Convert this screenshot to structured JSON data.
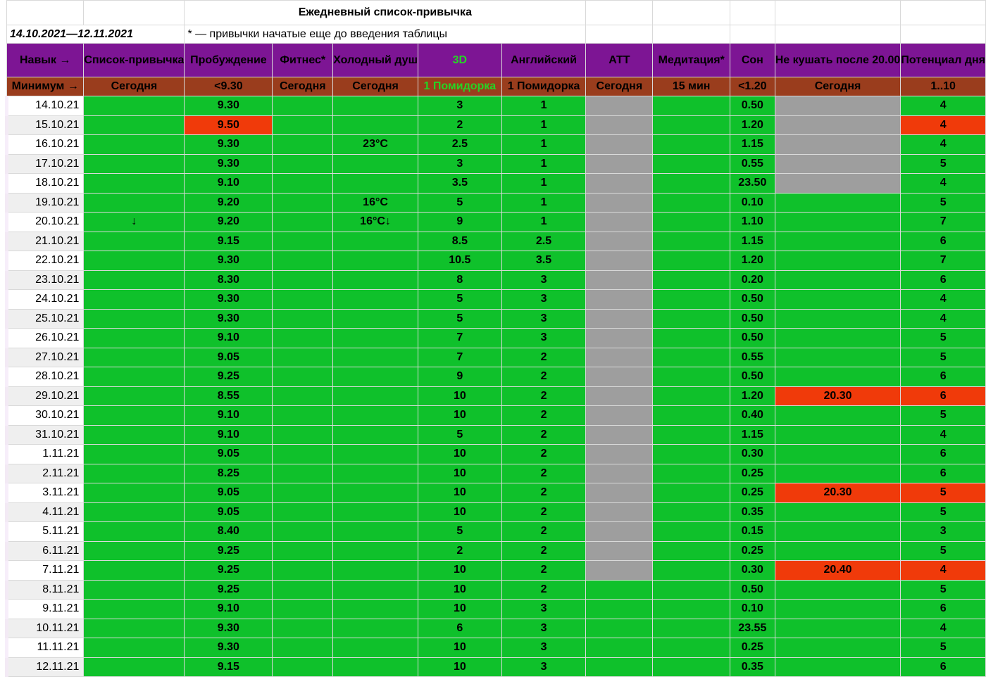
{
  "title": "Ежедневный список-привычка",
  "period": "14.10.2021—12.11.2021",
  "note": "* — привычки начатые еще до введения таблицы",
  "colors": {
    "header_bg": "#7d1594",
    "minimum_bg": "#9a3d1d",
    "done": "#0fc12b",
    "missed": "#f03a0a",
    "not_started": "#9e9e9e",
    "title": "#6a1b6e",
    "highlight_3d": "#25d525"
  },
  "headers": [
    "Навык →",
    "Список-привычка",
    "Пробуждение",
    "Фитнес*",
    "Холодный душ",
    "3D",
    "Английский",
    "АТТ",
    "Медитация*",
    "Сон",
    "Не кушать после 20.00",
    "Потенциал дня"
  ],
  "minimums": [
    "Минимум →",
    "Сегодня",
    "<9.30",
    "Сегодня",
    "Сегодня",
    "1 Помидорка",
    "1 Помидорка",
    "Сегодня",
    "15 мин",
    "<1.20",
    "Сегодня",
    "1..10"
  ],
  "rows": [
    {
      "date": "14.10.21",
      "cells": [
        [
          "",
          "g"
        ],
        [
          "9.30",
          "g"
        ],
        [
          "",
          "g"
        ],
        [
          "",
          "g"
        ],
        [
          "3",
          "g"
        ],
        [
          "1",
          "g"
        ],
        [
          "",
          "gr"
        ],
        [
          "",
          "g"
        ],
        [
          "0.50",
          "g"
        ],
        [
          "",
          "gr"
        ],
        [
          "4",
          "g"
        ]
      ]
    },
    {
      "date": "15.10.21",
      "cells": [
        [
          "",
          "g"
        ],
        [
          "9.50",
          "r"
        ],
        [
          "",
          "g"
        ],
        [
          "",
          "g"
        ],
        [
          "2",
          "g"
        ],
        [
          "1",
          "g"
        ],
        [
          "",
          "gr"
        ],
        [
          "",
          "g"
        ],
        [
          "1.20",
          "g"
        ],
        [
          "",
          "gr"
        ],
        [
          "4",
          "r"
        ]
      ]
    },
    {
      "date": "16.10.21",
      "cells": [
        [
          "",
          "g"
        ],
        [
          "9.30",
          "g"
        ],
        [
          "",
          "g"
        ],
        [
          "23°C",
          "g"
        ],
        [
          "2.5",
          "g"
        ],
        [
          "1",
          "g"
        ],
        [
          "",
          "gr"
        ],
        [
          "",
          "g"
        ],
        [
          "1.15",
          "g"
        ],
        [
          "",
          "gr"
        ],
        [
          "4",
          "g"
        ]
      ]
    },
    {
      "date": "17.10.21",
      "cells": [
        [
          "",
          "g"
        ],
        [
          "9.30",
          "g"
        ],
        [
          "",
          "g"
        ],
        [
          "",
          "g"
        ],
        [
          "3",
          "g"
        ],
        [
          "1",
          "g"
        ],
        [
          "",
          "gr"
        ],
        [
          "",
          "g"
        ],
        [
          "0.55",
          "g"
        ],
        [
          "",
          "gr"
        ],
        [
          "5",
          "g"
        ]
      ]
    },
    {
      "date": "18.10.21",
      "cells": [
        [
          "",
          "g"
        ],
        [
          "9.10",
          "g"
        ],
        [
          "",
          "g"
        ],
        [
          "",
          "g"
        ],
        [
          "3.5",
          "g"
        ],
        [
          "1",
          "g"
        ],
        [
          "",
          "gr"
        ],
        [
          "",
          "g"
        ],
        [
          "23.50",
          "g"
        ],
        [
          "",
          "gr"
        ],
        [
          "4",
          "g"
        ]
      ]
    },
    {
      "date": "19.10.21",
      "cells": [
        [
          "",
          "g"
        ],
        [
          "9.20",
          "g"
        ],
        [
          "",
          "g"
        ],
        [
          "16°C",
          "g"
        ],
        [
          "5",
          "g"
        ],
        [
          "1",
          "g"
        ],
        [
          "",
          "gr"
        ],
        [
          "",
          "g"
        ],
        [
          "0.10",
          "g"
        ],
        [
          "",
          "g"
        ],
        [
          "5",
          "g"
        ]
      ]
    },
    {
      "date": "20.10.21",
      "cells": [
        [
          "↓",
          "g"
        ],
        [
          "9.20",
          "g"
        ],
        [
          "",
          "g"
        ],
        [
          "16°C↓",
          "g"
        ],
        [
          "9",
          "g"
        ],
        [
          "1",
          "g"
        ],
        [
          "",
          "gr"
        ],
        [
          "",
          "g"
        ],
        [
          "1.10",
          "g"
        ],
        [
          "",
          "g"
        ],
        [
          "7",
          "g"
        ]
      ]
    },
    {
      "date": "21.10.21",
      "cells": [
        [
          "",
          "g"
        ],
        [
          "9.15",
          "g"
        ],
        [
          "",
          "g"
        ],
        [
          "",
          "g"
        ],
        [
          "8.5",
          "g"
        ],
        [
          "2.5",
          "g"
        ],
        [
          "",
          "gr"
        ],
        [
          "",
          "g"
        ],
        [
          "1.15",
          "g"
        ],
        [
          "",
          "g"
        ],
        [
          "6",
          "g"
        ]
      ]
    },
    {
      "date": "22.10.21",
      "cells": [
        [
          "",
          "g"
        ],
        [
          "9.30",
          "g"
        ],
        [
          "",
          "g"
        ],
        [
          "",
          "g"
        ],
        [
          "10.5",
          "g"
        ],
        [
          "3.5",
          "g"
        ],
        [
          "",
          "gr"
        ],
        [
          "",
          "g"
        ],
        [
          "1.20",
          "g"
        ],
        [
          "",
          "g"
        ],
        [
          "7",
          "g"
        ]
      ]
    },
    {
      "date": "23.10.21",
      "cells": [
        [
          "",
          "g"
        ],
        [
          "8.30",
          "g"
        ],
        [
          "",
          "g"
        ],
        [
          "",
          "g"
        ],
        [
          "8",
          "g"
        ],
        [
          "3",
          "g"
        ],
        [
          "",
          "gr"
        ],
        [
          "",
          "g"
        ],
        [
          "0.20",
          "g"
        ],
        [
          "",
          "g"
        ],
        [
          "6",
          "g"
        ]
      ]
    },
    {
      "date": "24.10.21",
      "cells": [
        [
          "",
          "g"
        ],
        [
          "9.30",
          "g"
        ],
        [
          "",
          "g"
        ],
        [
          "",
          "g"
        ],
        [
          "5",
          "g"
        ],
        [
          "3",
          "g"
        ],
        [
          "",
          "gr"
        ],
        [
          "",
          "g"
        ],
        [
          "0.50",
          "g"
        ],
        [
          "",
          "g"
        ],
        [
          "4",
          "g"
        ]
      ]
    },
    {
      "date": "25.10.21",
      "cells": [
        [
          "",
          "g"
        ],
        [
          "9.30",
          "g"
        ],
        [
          "",
          "g"
        ],
        [
          "",
          "g"
        ],
        [
          "5",
          "g"
        ],
        [
          "3",
          "g"
        ],
        [
          "",
          "gr"
        ],
        [
          "",
          "g"
        ],
        [
          "0.50",
          "g"
        ],
        [
          "",
          "g"
        ],
        [
          "4",
          "g"
        ]
      ]
    },
    {
      "date": "26.10.21",
      "cells": [
        [
          "",
          "g"
        ],
        [
          "9.10",
          "g"
        ],
        [
          "",
          "g"
        ],
        [
          "",
          "g"
        ],
        [
          "7",
          "g"
        ],
        [
          "3",
          "g"
        ],
        [
          "",
          "gr"
        ],
        [
          "",
          "g"
        ],
        [
          "0.50",
          "g"
        ],
        [
          "",
          "g"
        ],
        [
          "5",
          "g"
        ]
      ]
    },
    {
      "date": "27.10.21",
      "cells": [
        [
          "",
          "g"
        ],
        [
          "9.05",
          "g"
        ],
        [
          "",
          "g"
        ],
        [
          "",
          "g"
        ],
        [
          "7",
          "g"
        ],
        [
          "2",
          "g"
        ],
        [
          "",
          "gr"
        ],
        [
          "",
          "g"
        ],
        [
          "0.55",
          "g"
        ],
        [
          "",
          "g"
        ],
        [
          "5",
          "g"
        ]
      ]
    },
    {
      "date": "28.10.21",
      "cells": [
        [
          "",
          "g"
        ],
        [
          "9.25",
          "g"
        ],
        [
          "",
          "g"
        ],
        [
          "",
          "g"
        ],
        [
          "9",
          "g"
        ],
        [
          "2",
          "g"
        ],
        [
          "",
          "gr"
        ],
        [
          "",
          "g"
        ],
        [
          "0.50",
          "g"
        ],
        [
          "",
          "g"
        ],
        [
          "6",
          "g"
        ]
      ]
    },
    {
      "date": "29.10.21",
      "cells": [
        [
          "",
          "g"
        ],
        [
          "8.55",
          "g"
        ],
        [
          "",
          "g"
        ],
        [
          "",
          "g"
        ],
        [
          "10",
          "g"
        ],
        [
          "2",
          "g"
        ],
        [
          "",
          "gr"
        ],
        [
          "",
          "g"
        ],
        [
          "1.20",
          "g"
        ],
        [
          "20.30",
          "r"
        ],
        [
          "6",
          "r"
        ]
      ]
    },
    {
      "date": "30.10.21",
      "cells": [
        [
          "",
          "g"
        ],
        [
          "9.10",
          "g"
        ],
        [
          "",
          "g"
        ],
        [
          "",
          "g"
        ],
        [
          "10",
          "g"
        ],
        [
          "2",
          "g"
        ],
        [
          "",
          "gr"
        ],
        [
          "",
          "g"
        ],
        [
          "0.40",
          "g"
        ],
        [
          "",
          "g"
        ],
        [
          "5",
          "g"
        ]
      ]
    },
    {
      "date": "31.10.21",
      "cells": [
        [
          "",
          "g"
        ],
        [
          "9.10",
          "g"
        ],
        [
          "",
          "g"
        ],
        [
          "",
          "g"
        ],
        [
          "5",
          "g"
        ],
        [
          "2",
          "g"
        ],
        [
          "",
          "gr"
        ],
        [
          "",
          "g"
        ],
        [
          "1.15",
          "g"
        ],
        [
          "",
          "g"
        ],
        [
          "4",
          "g"
        ]
      ]
    },
    {
      "date": "1.11.21",
      "cells": [
        [
          "",
          "g"
        ],
        [
          "9.05",
          "g"
        ],
        [
          "",
          "g"
        ],
        [
          "",
          "g"
        ],
        [
          "10",
          "g"
        ],
        [
          "2",
          "g"
        ],
        [
          "",
          "gr"
        ],
        [
          "",
          "g"
        ],
        [
          "0.30",
          "g"
        ],
        [
          "",
          "g"
        ],
        [
          "6",
          "g"
        ]
      ]
    },
    {
      "date": "2.11.21",
      "cells": [
        [
          "",
          "g"
        ],
        [
          "8.25",
          "g"
        ],
        [
          "",
          "g"
        ],
        [
          "",
          "g"
        ],
        [
          "10",
          "g"
        ],
        [
          "2",
          "g"
        ],
        [
          "",
          "gr"
        ],
        [
          "",
          "g"
        ],
        [
          "0.25",
          "g"
        ],
        [
          "",
          "g"
        ],
        [
          "6",
          "g"
        ]
      ]
    },
    {
      "date": "3.11.21",
      "cells": [
        [
          "",
          "g"
        ],
        [
          "9.05",
          "g"
        ],
        [
          "",
          "g"
        ],
        [
          "",
          "g"
        ],
        [
          "10",
          "g"
        ],
        [
          "2",
          "g"
        ],
        [
          "",
          "gr"
        ],
        [
          "",
          "g"
        ],
        [
          "0.25",
          "g"
        ],
        [
          "20.30",
          "r"
        ],
        [
          "5",
          "r"
        ]
      ]
    },
    {
      "date": "4.11.21",
      "cells": [
        [
          "",
          "g"
        ],
        [
          "9.05",
          "g"
        ],
        [
          "",
          "g"
        ],
        [
          "",
          "g"
        ],
        [
          "10",
          "g"
        ],
        [
          "2",
          "g"
        ],
        [
          "",
          "gr"
        ],
        [
          "",
          "g"
        ],
        [
          "0.35",
          "g"
        ],
        [
          "",
          "g"
        ],
        [
          "5",
          "g"
        ]
      ]
    },
    {
      "date": "5.11.21",
      "cells": [
        [
          "",
          "g"
        ],
        [
          "8.40",
          "g"
        ],
        [
          "",
          "g"
        ],
        [
          "",
          "g"
        ],
        [
          "5",
          "g"
        ],
        [
          "2",
          "g"
        ],
        [
          "",
          "gr"
        ],
        [
          "",
          "g"
        ],
        [
          "0.15",
          "g"
        ],
        [
          "",
          "g"
        ],
        [
          "3",
          "g"
        ]
      ]
    },
    {
      "date": "6.11.21",
      "cells": [
        [
          "",
          "g"
        ],
        [
          "9.25",
          "g"
        ],
        [
          "",
          "g"
        ],
        [
          "",
          "g"
        ],
        [
          "2",
          "g"
        ],
        [
          "2",
          "g"
        ],
        [
          "",
          "gr"
        ],
        [
          "",
          "g"
        ],
        [
          "0.25",
          "g"
        ],
        [
          "",
          "g"
        ],
        [
          "5",
          "g"
        ]
      ]
    },
    {
      "date": "7.11.21",
      "cells": [
        [
          "",
          "g"
        ],
        [
          "9.25",
          "g"
        ],
        [
          "",
          "g"
        ],
        [
          "",
          "g"
        ],
        [
          "10",
          "g"
        ],
        [
          "2",
          "g"
        ],
        [
          "",
          "gr"
        ],
        [
          "",
          "g"
        ],
        [
          "0.30",
          "g"
        ],
        [
          "20.40",
          "r"
        ],
        [
          "4",
          "r"
        ]
      ]
    },
    {
      "date": "8.11.21",
      "cells": [
        [
          "",
          "g"
        ],
        [
          "9.25",
          "g"
        ],
        [
          "",
          "g"
        ],
        [
          "",
          "g"
        ],
        [
          "10",
          "g"
        ],
        [
          "2",
          "g"
        ],
        [
          "",
          "g"
        ],
        [
          "",
          "g"
        ],
        [
          "0.50",
          "g"
        ],
        [
          "",
          "g"
        ],
        [
          "5",
          "g"
        ]
      ]
    },
    {
      "date": "9.11.21",
      "cells": [
        [
          "",
          "g"
        ],
        [
          "9.10",
          "g"
        ],
        [
          "",
          "g"
        ],
        [
          "",
          "g"
        ],
        [
          "10",
          "g"
        ],
        [
          "3",
          "g"
        ],
        [
          "",
          "g"
        ],
        [
          "",
          "g"
        ],
        [
          "0.10",
          "g"
        ],
        [
          "",
          "g"
        ],
        [
          "6",
          "g"
        ]
      ]
    },
    {
      "date": "10.11.21",
      "cells": [
        [
          "",
          "g"
        ],
        [
          "9.30",
          "g"
        ],
        [
          "",
          "g"
        ],
        [
          "",
          "g"
        ],
        [
          "6",
          "g"
        ],
        [
          "3",
          "g"
        ],
        [
          "",
          "g"
        ],
        [
          "",
          "g"
        ],
        [
          "23.55",
          "g"
        ],
        [
          "",
          "g"
        ],
        [
          "4",
          "g"
        ]
      ]
    },
    {
      "date": "11.11.21",
      "cells": [
        [
          "",
          "g"
        ],
        [
          "9.30",
          "g"
        ],
        [
          "",
          "g"
        ],
        [
          "",
          "g"
        ],
        [
          "10",
          "g"
        ],
        [
          "3",
          "g"
        ],
        [
          "",
          "g"
        ],
        [
          "",
          "g"
        ],
        [
          "0.25",
          "g"
        ],
        [
          "",
          "g"
        ],
        [
          "5",
          "g"
        ]
      ]
    },
    {
      "date": "12.11.21",
      "cells": [
        [
          "",
          "g"
        ],
        [
          "9.15",
          "g"
        ],
        [
          "",
          "g"
        ],
        [
          "",
          "g"
        ],
        [
          "10",
          "g"
        ],
        [
          "3",
          "g"
        ],
        [
          "",
          "g"
        ],
        [
          "",
          "g"
        ],
        [
          "0.35",
          "g"
        ],
        [
          "",
          "g"
        ],
        [
          "6",
          "g"
        ]
      ]
    }
  ]
}
